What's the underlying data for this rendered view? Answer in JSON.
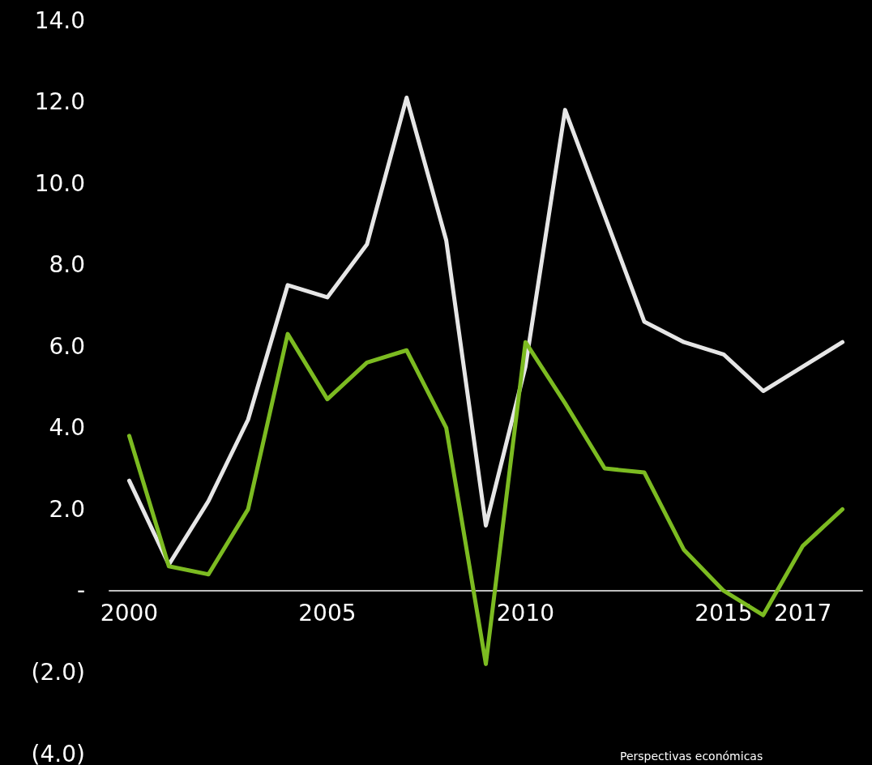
{
  "chart_data": {
    "type": "line",
    "categories": [
      "2000",
      null,
      null,
      null,
      null,
      "2005",
      null,
      null,
      null,
      null,
      "2010",
      null,
      null,
      null,
      null,
      "2015",
      null,
      "2017",
      null
    ],
    "series": [
      {
        "color": "#e6e6e6",
        "values": [
          2.7,
          0.64,
          2.2,
          4.2,
          7.5,
          7.2,
          8.5,
          12.1,
          8.6,
          1.6,
          5.5,
          11.8,
          9.2,
          6.6,
          6.1,
          5.8,
          4.9,
          5.5,
          6.1
        ]
      },
      {
        "color": "#7cbb21",
        "values": [
          3.8,
          0.6,
          0.4,
          2.0,
          6.3,
          4.7,
          5.6,
          5.9,
          4.0,
          -1.8,
          6.1,
          4.6,
          3.0,
          2.9,
          1.0,
          0.0,
          -0.6,
          1.1,
          2.0
        ]
      }
    ],
    "ylim": [
      -4,
      14
    ],
    "yticks": [
      {
        "value": -4,
        "label": "(4.0)"
      },
      {
        "value": -2,
        "label": "(2.0)"
      },
      {
        "value": 0,
        "label": "-"
      },
      {
        "value": 2,
        "label": "2.0"
      },
      {
        "value": 4,
        "label": "4.0"
      },
      {
        "value": 6,
        "label": "6.0"
      },
      {
        "value": 8,
        "label": "8.0"
      },
      {
        "value": 10,
        "label": "10.0"
      },
      {
        "value": 12,
        "label": "12.0"
      },
      {
        "value": 14,
        "label": "14.0"
      }
    ],
    "grid": false,
    "marker": "none",
    "line_style": "solid",
    "annotations": [
      "Perspectivas económicas"
    ]
  }
}
